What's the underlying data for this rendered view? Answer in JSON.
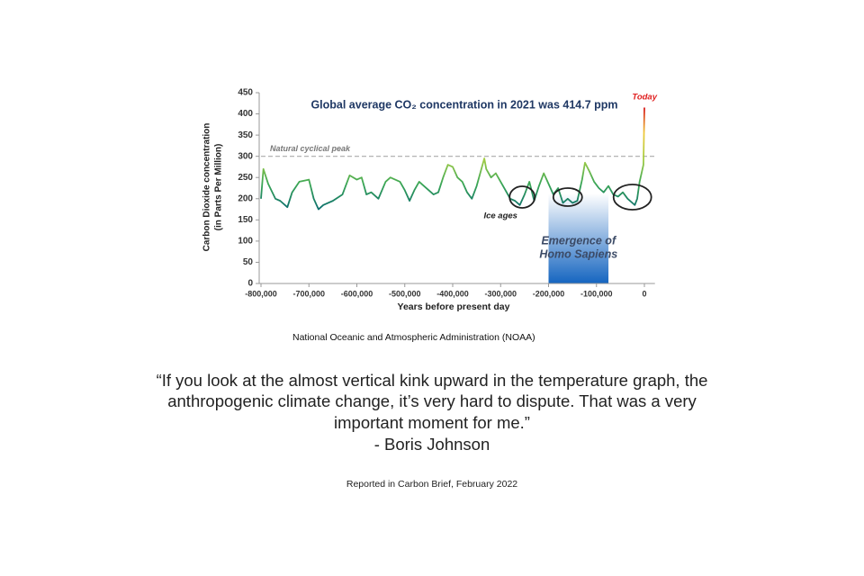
{
  "chart_data": {
    "type": "line",
    "title": "Global average CO₂ concentration in 2021 was 414.7 ppm",
    "xlabel": "Years before present day",
    "ylabel": [
      "Carbon Dioxide concentration",
      "(in Parts Per Million)"
    ],
    "x": [
      -800000,
      -795000,
      -785000,
      -770000,
      -760000,
      -745000,
      -735000,
      -720000,
      -700000,
      -690000,
      -680000,
      -670000,
      -650000,
      -630000,
      -615000,
      -600000,
      -590000,
      -580000,
      -570000,
      -555000,
      -540000,
      -530000,
      -510000,
      -500000,
      -490000,
      -480000,
      -470000,
      -460000,
      -440000,
      -430000,
      -420000,
      -410000,
      -400000,
      -390000,
      -380000,
      -370000,
      -360000,
      -350000,
      -334000,
      -330000,
      -320000,
      -310000,
      -300000,
      -290000,
      -280000,
      -270000,
      -260000,
      -250000,
      -240000,
      -230000,
      -220000,
      -210000,
      -200000,
      -190000,
      -180000,
      -170000,
      -160000,
      -150000,
      -140000,
      -130000,
      -124000,
      -115000,
      -105000,
      -95000,
      -85000,
      -75000,
      -65000,
      -55000,
      -45000,
      -35000,
      -25000,
      -20000,
      -15000,
      -10000,
      -5000,
      -2000,
      0
    ],
    "values": [
      200,
      270,
      235,
      200,
      195,
      180,
      215,
      240,
      245,
      200,
      175,
      185,
      195,
      210,
      255,
      245,
      250,
      210,
      215,
      200,
      240,
      250,
      240,
      220,
      195,
      220,
      240,
      230,
      210,
      215,
      250,
      280,
      275,
      250,
      240,
      215,
      200,
      230,
      295,
      270,
      250,
      260,
      240,
      220,
      200,
      195,
      185,
      210,
      240,
      195,
      230,
      260,
      235,
      210,
      225,
      190,
      200,
      190,
      195,
      245,
      285,
      265,
      240,
      225,
      215,
      230,
      210,
      205,
      215,
      200,
      190,
      185,
      200,
      240,
      265,
      280,
      415
    ],
    "colors": [
      "#0b6e6e",
      "#3aa655",
      "#a8cf45",
      "#f0c93a",
      "#d7191c"
    ],
    "xlim": [
      -800000,
      22000
    ],
    "ylim": [
      0,
      450
    ],
    "xticks": [
      {
        "value": -800000,
        "label": "-800,000"
      },
      {
        "value": -700000,
        "label": "-700,000"
      },
      {
        "value": -600000,
        "label": "-600,000"
      },
      {
        "value": -500000,
        "label": "-500,000"
      },
      {
        "value": -400000,
        "label": "-400,000"
      },
      {
        "value": -300000,
        "label": "-300,000"
      },
      {
        "value": -200000,
        "label": "-200,000"
      },
      {
        "value": -100000,
        "label": "-100,000"
      },
      0
    ],
    "yticks": [
      0,
      50,
      100,
      150,
      200,
      250,
      300,
      350,
      400,
      450
    ],
    "peak": {
      "value": 300,
      "label": "Natural cyclical peak"
    },
    "today_label": "Today",
    "ice_ages": {
      "label": "Ice ages",
      "x": [
        -255000,
        -160000,
        -25000
      ]
    },
    "emergence": {
      "x": [
        -200000,
        -75000
      ],
      "label": [
        "Emergence of",
        "Homo Sapiens"
      ]
    }
  },
  "source": "National Oceanic and Atmospheric Administration (NOAA)",
  "quote": {
    "lines": [
      "“If you look at the almost vertical kink upward in the temperature graph, the",
      "anthropogenic climate change, it’s very hard to dispute. That was a very",
      "important moment for me.”"
    ],
    "attribution": "- Boris Johnson"
  },
  "reported": "Reported in Carbon Brief, February 2022"
}
